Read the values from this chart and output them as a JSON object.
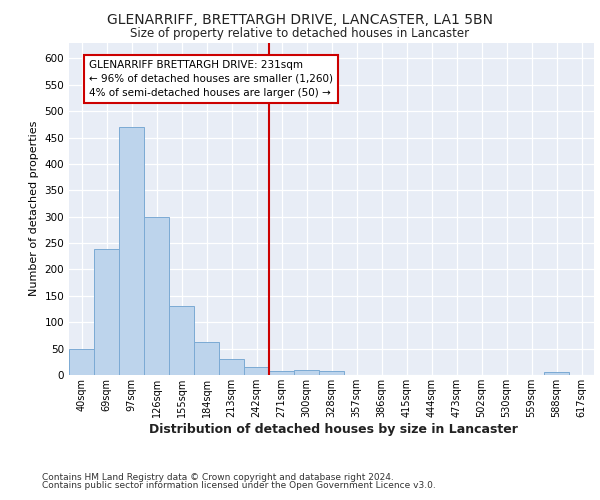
{
  "title1": "GLENARRIFF, BRETTARGH DRIVE, LANCASTER, LA1 5BN",
  "title2": "Size of property relative to detached houses in Lancaster",
  "xlabel": "Distribution of detached houses by size in Lancaster",
  "ylabel": "Number of detached properties",
  "footnote1": "Contains HM Land Registry data © Crown copyright and database right 2024.",
  "footnote2": "Contains public sector information licensed under the Open Government Licence v3.0.",
  "bar_labels": [
    "40sqm",
    "69sqm",
    "97sqm",
    "126sqm",
    "155sqm",
    "184sqm",
    "213sqm",
    "242sqm",
    "271sqm",
    "300sqm",
    "328sqm",
    "357sqm",
    "386sqm",
    "415sqm",
    "444sqm",
    "473sqm",
    "502sqm",
    "530sqm",
    "559sqm",
    "588sqm",
    "617sqm"
  ],
  "bar_values": [
    50,
    238,
    470,
    300,
    130,
    62,
    30,
    15,
    8,
    10,
    8,
    0,
    0,
    0,
    0,
    0,
    0,
    0,
    0,
    5,
    0
  ],
  "bar_color": "#bdd4ec",
  "bar_edge_color": "#7baad4",
  "vline_x": 7.5,
  "vline_color": "#cc0000",
  "annotation_title": "GLENARRIFF BRETTARGH DRIVE: 231sqm",
  "annotation_line1": "← 96% of detached houses are smaller (1,260)",
  "annotation_line2": "4% of semi-detached houses are larger (50) →",
  "annotation_box_color": "#cc0000",
  "ylim": [
    0,
    630
  ],
  "yticks": [
    0,
    50,
    100,
    150,
    200,
    250,
    300,
    350,
    400,
    450,
    500,
    550,
    600
  ],
  "bg_color": "#e8edf6",
  "grid_color": "#ffffff"
}
